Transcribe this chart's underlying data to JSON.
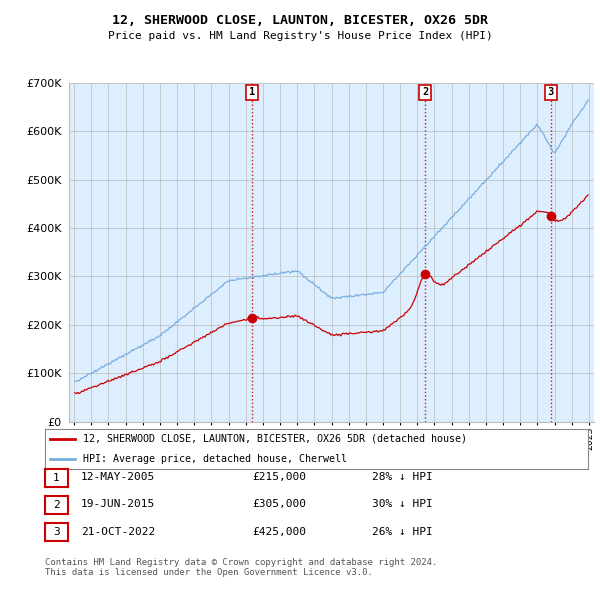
{
  "title": "12, SHERWOOD CLOSE, LAUNTON, BICESTER, OX26 5DR",
  "subtitle": "Price paid vs. HM Land Registry's House Price Index (HPI)",
  "ylim": [
    0,
    700000
  ],
  "yticks": [
    0,
    100000,
    200000,
    300000,
    400000,
    500000,
    600000,
    700000
  ],
  "sale_color": "#cc0000",
  "hpi_color": "#7aade0",
  "vline_color": "#cc0000",
  "grid_color": "#bbbbbb",
  "plot_bg_color": "#ddeeff",
  "bg_color": "#ffffff",
  "legend_sale_label": "12, SHERWOOD CLOSE, LAUNTON, BICESTER, OX26 5DR (detached house)",
  "legend_hpi_label": "HPI: Average price, detached house, Cherwell",
  "sale_times": [
    2005.37,
    2015.46,
    2022.79
  ],
  "sale_prices": [
    215000,
    305000,
    425000
  ],
  "sale_labels": [
    "1",
    "2",
    "3"
  ],
  "table_rows": [
    [
      "1",
      "12-MAY-2005",
      "£215,000",
      "28% ↓ HPI"
    ],
    [
      "2",
      "19-JUN-2015",
      "£305,000",
      "30% ↓ HPI"
    ],
    [
      "3",
      "21-OCT-2022",
      "£425,000",
      "26% ↓ HPI"
    ]
  ],
  "footnote": "Contains HM Land Registry data © Crown copyright and database right 2024.\nThis data is licensed under the Open Government Licence v3.0.",
  "xlim_min": 1994.7,
  "xlim_max": 2025.3,
  "x_start": 1995,
  "x_end": 2025
}
